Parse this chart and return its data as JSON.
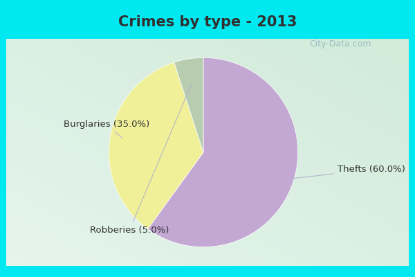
{
  "title": "Crimes by type - 2013",
  "slices": [
    {
      "label": "Thefts (60.0%)",
      "value": 60.0,
      "color": "#c4a8d4"
    },
    {
      "label": "Burglaries (35.0%)",
      "value": 35.0,
      "color": "#f0f098"
    },
    {
      "label": "Robberies (5.0%)",
      "value": 5.0,
      "color": "#b8ccb0"
    }
  ],
  "border_color": "#00e8f0",
  "bg_color_top_left": "#c8e8d8",
  "bg_color_bottom_right": "#d8f0e8",
  "title_fontsize": 15,
  "label_fontsize": 9.5,
  "startangle": 90,
  "title_color": "#303030",
  "label_color": "#303030",
  "watermark": "City-Data.com",
  "watermark_color": "#90b8c0"
}
